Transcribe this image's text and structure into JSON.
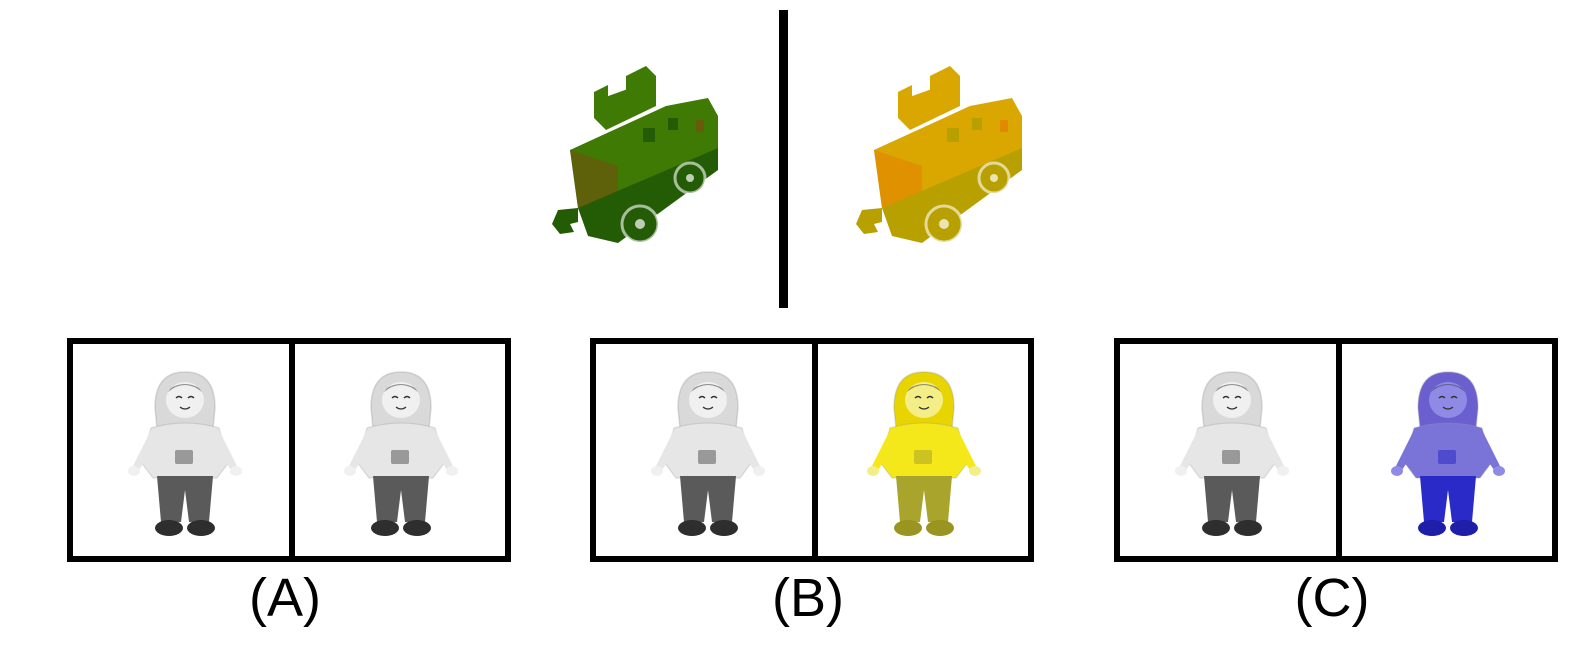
{
  "reference": {
    "left_train": {
      "icon": "toy-train-caboose-icon",
      "body_color": "#3f7a05",
      "shade_color": "#245c05",
      "accent_color": "#6a5a0c"
    },
    "right_train": {
      "icon": "toy-train-caboose-icon",
      "body_color": "#d9a700",
      "shade_color": "#b8a000",
      "accent_color": "#e08a00"
    }
  },
  "options": [
    {
      "label": "(A)",
      "left_doll": {
        "icon": "doll-figure-icon",
        "hood": "#d9d9d9",
        "shirt": "#e6e6e6",
        "pants": "#5a5a5a",
        "shoes": "#2e2e2e",
        "skin": "#f0f0f0"
      },
      "right_doll": {
        "icon": "doll-figure-icon",
        "hood": "#d9d9d9",
        "shirt": "#e6e6e6",
        "pants": "#5a5a5a",
        "shoes": "#2e2e2e",
        "skin": "#f0f0f0"
      }
    },
    {
      "label": "(B)",
      "left_doll": {
        "icon": "doll-figure-icon",
        "hood": "#d9d9d9",
        "shirt": "#e6e6e6",
        "pants": "#5a5a5a",
        "shoes": "#2e2e2e",
        "skin": "#f0f0f0"
      },
      "right_doll": {
        "icon": "doll-figure-icon",
        "hood": "#e8d400",
        "shirt": "#f5e81a",
        "pants": "#a9a42c",
        "shoes": "#9a9420",
        "skin": "#f3ee88"
      }
    },
    {
      "label": "(C)",
      "left_doll": {
        "icon": "doll-figure-icon",
        "hood": "#d9d9d9",
        "shirt": "#e6e6e6",
        "pants": "#5a5a5a",
        "shoes": "#2e2e2e",
        "skin": "#f0f0f0"
      },
      "right_doll": {
        "icon": "doll-figure-icon",
        "hood": "#6b5fd0",
        "shirt": "#7a74d8",
        "pants": "#2a2ac8",
        "shoes": "#1e1ea8",
        "skin": "#8f8ae6"
      }
    }
  ]
}
